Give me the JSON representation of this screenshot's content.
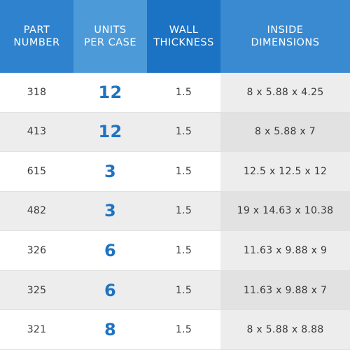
{
  "header": {
    "part_number": "PART\nNUMBER",
    "units_per_case": "UNITS\nPER CASE",
    "wall_thickness": "WALL\nTHICKNESS",
    "inside_dimensions": "INSIDE\nDIMENSIONS"
  },
  "colors": {
    "header_blue": "#2f82cd",
    "header_light_blue": "#4d9ad9",
    "header_dark_blue": "#1c72c3",
    "units_text_blue": "#1f73c1"
  },
  "rows": [
    {
      "part": "318",
      "units": "12",
      "wall": "1.5",
      "dims": "8 x 5.88 x 4.25"
    },
    {
      "part": "413",
      "units": "12",
      "wall": "1.5",
      "dims": "8 x 5.88 x 7"
    },
    {
      "part": "615",
      "units": "3",
      "wall": "1.5",
      "dims": "12.5 x 12.5 x 12"
    },
    {
      "part": "482",
      "units": "3",
      "wall": "1.5",
      "dims": "19 x 14.63 x 10.38"
    },
    {
      "part": "326",
      "units": "6",
      "wall": "1.5",
      "dims": "11.63 x 9.88 x 9"
    },
    {
      "part": "325",
      "units": "6",
      "wall": "1.5",
      "dims": "11.63 x 9.88 x 7"
    },
    {
      "part": "321",
      "units": "8",
      "wall": "1.5",
      "dims": "8 x 5.88 x 8.88"
    }
  ]
}
